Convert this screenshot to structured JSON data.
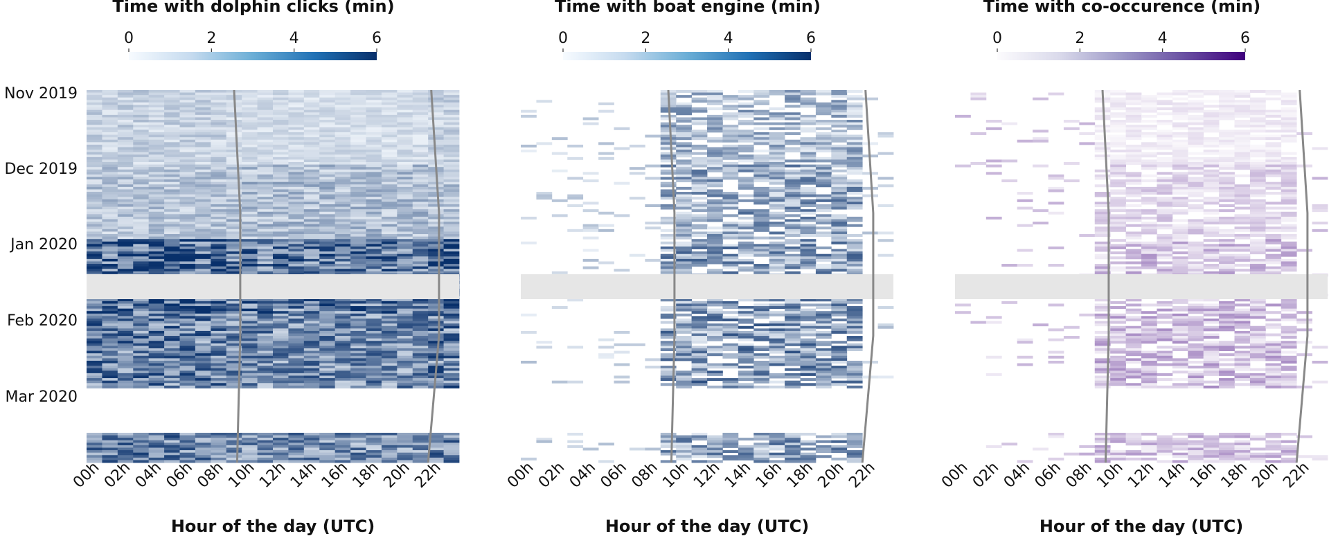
{
  "chart_data": [
    {
      "type": "heatmap",
      "title": "Time with dolphin clicks (min)",
      "xlabel": "Hour of the day (UTC)",
      "x_tick_labels": [
        "00h",
        "02h",
        "04h",
        "06h",
        "08h",
        "10h",
        "12h",
        "14h",
        "16h",
        "18h",
        "20h",
        "22h"
      ],
      "y_tick_labels": [
        "Nov 2019",
        "Dec 2019",
        "Jan 2020",
        "Feb 2020",
        "Mar 2020"
      ],
      "colorbar": {
        "ticks": [
          "0",
          "2",
          "4",
          "6"
        ],
        "range": [
          0,
          6
        ],
        "colors": [
          "#f7fbff",
          "#08306b"
        ]
      },
      "shape": {
        "hours": 24,
        "days": 150
      },
      "gap_days": [
        120,
        137
      ],
      "sun_lines": {
        "sunrise_hour": [
          9.5,
          9.9,
          9.9,
          9.7
        ],
        "sunset_hour": [
          22.2,
          22.7,
          22.7,
          22.0
        ]
      },
      "profile": {
        "monthly_mean_night": [
          1.2,
          1.6,
          4.6,
          3.6,
          3.4
        ],
        "monthly_mean_day": [
          0.9,
          1.8,
          3.8,
          3.2,
          3.1
        ]
      }
    },
    {
      "type": "heatmap",
      "title": "Time with boat engine (min)",
      "xlabel": "Hour of the day (UTC)",
      "x_tick_labels": [
        "00h",
        "02h",
        "04h",
        "06h",
        "08h",
        "10h",
        "12h",
        "14h",
        "16h",
        "18h",
        "20h",
        "22h"
      ],
      "y_tick_labels": [],
      "colorbar": {
        "ticks": [
          "0",
          "2",
          "4",
          "6"
        ],
        "range": [
          0,
          6
        ],
        "colors": [
          "#f7fbff",
          "#08306b"
        ]
      },
      "shape": {
        "hours": 24,
        "days": 150
      },
      "gap_days": [
        120,
        137
      ],
      "sun_lines": {
        "sunrise_hour": [
          9.5,
          9.9,
          9.9,
          9.7
        ],
        "sunset_hour": [
          22.2,
          22.7,
          22.7,
          22.0
        ]
      },
      "profile": {
        "monthly_mean_night": [
          0.1,
          0.1,
          0.1,
          0.1,
          0.1
        ],
        "monthly_mean_day": [
          2.0,
          2.4,
          2.6,
          2.8,
          2.5
        ]
      }
    },
    {
      "type": "heatmap",
      "title": "Time with co-occurence (min)",
      "xlabel": "Hour of the day (UTC)",
      "x_tick_labels": [
        "00h",
        "02h",
        "04h",
        "06h",
        "08h",
        "10h",
        "12h",
        "14h",
        "16h",
        "18h",
        "20h",
        "22h"
      ],
      "y_tick_labels": [],
      "colorbar": {
        "ticks": [
          "0",
          "2",
          "4",
          "6"
        ],
        "range": [
          0,
          6
        ],
        "colors": [
          "#fcfbfd",
          "#3f007d"
        ]
      },
      "shape": {
        "hours": 24,
        "days": 150
      },
      "gap_days": [
        120,
        137
      ],
      "sun_lines": {
        "sunrise_hour": [
          9.5,
          9.9,
          9.9,
          9.7
        ],
        "sunset_hour": [
          22.2,
          22.7,
          22.7,
          22.0
        ]
      },
      "profile": {
        "monthly_mean_night": [
          0.05,
          0.05,
          0.05,
          0.05,
          0.05
        ],
        "monthly_mean_day": [
          0.4,
          0.9,
          1.4,
          1.5,
          1.3
        ]
      }
    }
  ]
}
